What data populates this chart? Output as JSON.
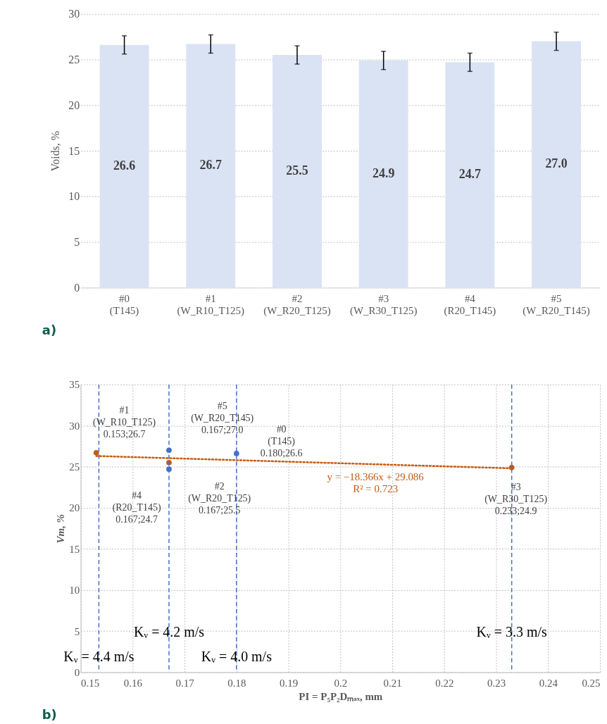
{
  "chart_data": [
    {
      "type": "bar",
      "categories": [
        "#0 (T145)",
        "#1 (W_R10_T125)",
        "#2 (W_R20_T125)",
        "#3 (W_R30_T125)",
        "#4 (R20_T145)",
        "#5 (W_R20_T145)"
      ],
      "values": [
        26.6,
        26.7,
        25.5,
        24.9,
        24.7,
        27.0
      ],
      "errors": [
        1.0,
        1.0,
        1.0,
        1.0,
        1.0,
        1.0
      ],
      "color": "#dae3f3",
      "ylabel": "Voids, %",
      "ylim": [
        0,
        30
      ],
      "yticks": [
        0,
        5,
        10,
        15,
        20,
        25,
        30
      ],
      "grid": "y",
      "value_labels": [
        "26.6",
        "26.7",
        "25.5",
        "24.9",
        "24.7",
        "27.0"
      ],
      "annotations": [
        "a)"
      ]
    },
    {
      "type": "scatter",
      "xlabel": "PI = P₅P₂Dₘₐₓ, mm",
      "ylabel": "Vm, %",
      "xlim": [
        0.15,
        0.25
      ],
      "xticks": [
        0.15,
        0.16,
        0.17,
        0.18,
        0.19,
        0.2,
        0.21,
        0.22,
        0.23,
        0.24,
        0.25
      ],
      "ylim": [
        0,
        35
      ],
      "yticks": [
        0,
        5,
        10,
        15,
        20,
        25,
        30,
        35
      ],
      "grid": true,
      "marker": "circle",
      "series": [
        {
          "type": "scatter",
          "color": "#4472c4",
          "x": [
            0.18,
            0.167,
            0.167
          ],
          "values": [
            26.6,
            24.7,
            27.0
          ]
        },
        {
          "type": "scatter",
          "color": "#c55a11",
          "x": [
            0.153,
            0.167,
            0.233
          ],
          "values": [
            26.7,
            25.5,
            24.9
          ]
        },
        {
          "type": "line",
          "color": "#c55a11",
          "line_style": "dotted",
          "marker": "none",
          "x": [
            0.153,
            0.233
          ],
          "values": [
            26.3,
            24.8
          ]
        }
      ],
      "ref_lines": [
        {
          "axis": "x",
          "value": 0.1535,
          "color": "#4472c4",
          "line_style": "dashed"
        },
        {
          "axis": "x",
          "value": 0.167,
          "color": "#4472c4",
          "line_style": "dashed"
        },
        {
          "axis": "x",
          "value": 0.18,
          "color": "#4472c4",
          "line_style": "dashed"
        },
        {
          "axis": "x",
          "value": 0.233,
          "color": "#4472c4",
          "line_style": "dashed"
        }
      ],
      "annotations": [
        {
          "text": "#1\n(W_R10_T125)\n0.153;26.7",
          "x": 0.153,
          "y": 26.7
        },
        {
          "text": "#5\n(W_R20_T145)\n0.167;27.0",
          "x": 0.167,
          "y": 27.0
        },
        {
          "text": "#0\n(T145)\n0.180;26.6",
          "x": 0.18,
          "y": 26.6
        },
        {
          "text": "#2\n(W_R20_T125)\n0.167;25.5",
          "x": 0.167,
          "y": 25.5
        },
        {
          "text": "#4\n(R20_T145)\n0.167;24.7",
          "x": 0.167,
          "y": 24.7
        },
        {
          "text": "#3\n(W_R30_T125)\n0.233;24.9",
          "x": 0.233,
          "y": 24.9
        },
        {
          "text": "y = −18.366x + 29.086\nR² = 0.723",
          "x": 0.2,
          "y": 25.6
        },
        {
          "text": "Kᵥ = 4.4 m/s",
          "x": 0.1535,
          "y": 1
        },
        {
          "text": "Kᵥ = 4.2 m/s",
          "x": 0.167,
          "y": 4
        },
        {
          "text": "Kᵥ = 4.0 m/s",
          "x": 0.18,
          "y": 1
        },
        {
          "text": "Kᵥ = 3.3 m/s",
          "x": 0.233,
          "y": 4
        },
        "b)"
      ]
    }
  ]
}
